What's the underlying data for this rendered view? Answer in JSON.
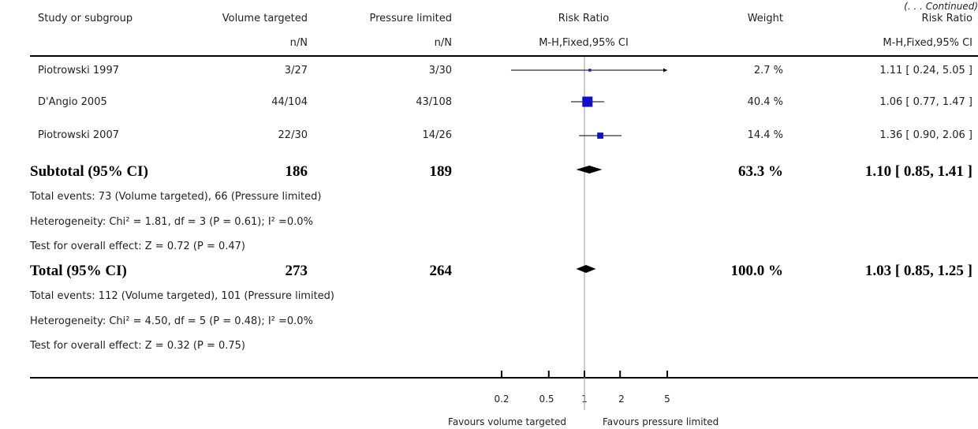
{
  "continued": "(. . . Continued)",
  "header": {
    "study": "Study or subgroup",
    "vt": "Volume targeted",
    "pl": "Pressure limited",
    "rr": "Risk Ratio",
    "weight": "Weight",
    "rr2": "Risk Ratio",
    "vt_sub": "n/N",
    "pl_sub": "n/N",
    "rr_sub": "M-H,Fixed,95% CI",
    "rr2_sub": "M-H,Fixed,95% CI"
  },
  "studies": [
    {
      "name": "Piotrowski 1997",
      "vt": "3/27",
      "pl": "3/30",
      "weight": "2.7 %",
      "ci": "1.11 [ 0.24, 5.05 ]"
    },
    {
      "name": "D'Angio 2005",
      "vt": "44/104",
      "pl": "43/108",
      "weight": "40.4 %",
      "ci": "1.06 [ 0.77, 1.47 ]"
    },
    {
      "name": "Piotrowski 2007",
      "vt": "22/30",
      "pl": "14/26",
      "weight": "14.4 %",
      "ci": "1.36 [ 0.90, 2.06 ]"
    }
  ],
  "subtotal": {
    "label": "Subtotal (95% CI)",
    "vt": "186",
    "pl": "189",
    "weight": "63.3 %",
    "ci": "1.10 [ 0.85, 1.41 ]"
  },
  "subtotal_notes": [
    "Total events: 73 (Volume targeted), 66 (Pressure limited)",
    "Heterogeneity: Chi² = 1.81, df = 3 (P = 0.61); I² =0.0%",
    "Test for overall effect: Z = 0.72 (P = 0.47)"
  ],
  "total": {
    "label": "Total (95% CI)",
    "vt": "273",
    "pl": "264",
    "weight": "100.0 %",
    "ci": "1.03 [ 0.85, 1.25 ]"
  },
  "total_notes": [
    "Total events: 112 (Volume targeted), 101 (Pressure limited)",
    "Heterogeneity: Chi² = 4.50, df = 5 (P = 0.48); I² =0.0%",
    "Test for overall effect: Z = 0.32 (P = 0.75)"
  ],
  "axis": {
    "ticks": [
      "0.2",
      "0.5",
      "1",
      "2",
      "5"
    ],
    "favours_left": "Favours volume targeted",
    "favours_right": "Favours pressure limited"
  },
  "chart_data": {
    "type": "forest",
    "scale": "log",
    "xlim": [
      0.2,
      5
    ],
    "ticks": [
      0.2,
      0.5,
      1,
      2,
      5
    ],
    "null_line": 1,
    "study_color": "#1010cc",
    "studies": [
      {
        "name": "Piotrowski 1997",
        "rr": 1.11,
        "lo": 0.24,
        "hi": 5.05,
        "weight": 2.7,
        "lo_arrow": false,
        "hi_arrow": true
      },
      {
        "name": "D'Angio 2005",
        "rr": 1.06,
        "lo": 0.77,
        "hi": 1.47,
        "weight": 40.4
      },
      {
        "name": "Piotrowski 2007",
        "rr": 1.36,
        "lo": 0.9,
        "hi": 2.06,
        "weight": 14.4
      }
    ],
    "pooled": [
      {
        "name": "Subtotal (95% CI)",
        "rr": 1.1,
        "lo": 0.85,
        "hi": 1.41
      },
      {
        "name": "Total (95% CI)",
        "rr": 1.03,
        "lo": 0.85,
        "hi": 1.25
      }
    ]
  }
}
